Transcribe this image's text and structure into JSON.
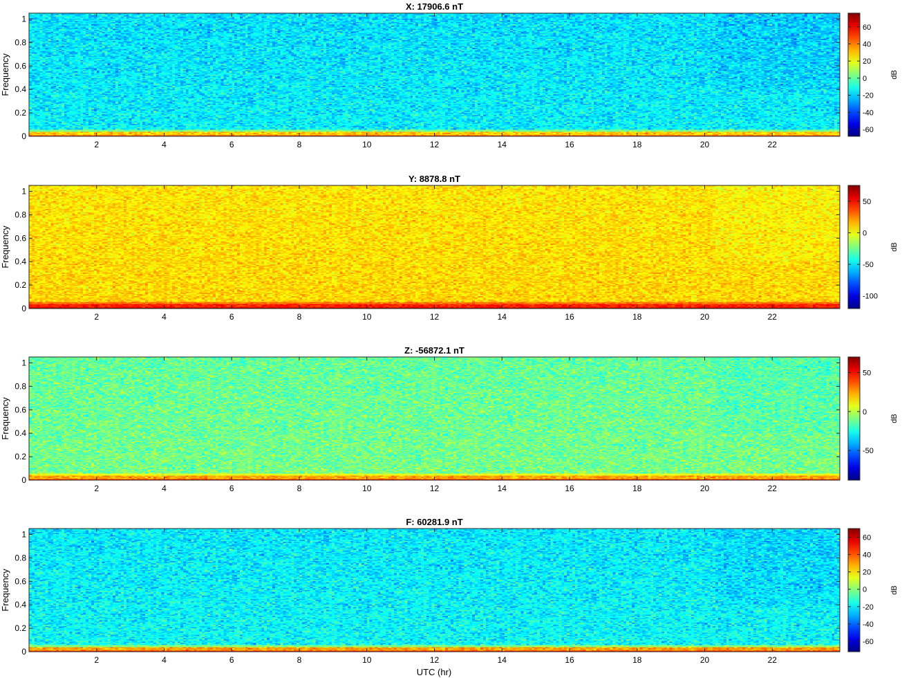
{
  "figure": {
    "xlabel": "UTC (hr)"
  },
  "chart_data": [
    {
      "type": "heatmap",
      "title": "X: 17906.6 nT",
      "ylabel": "Frequency",
      "xlim": [
        0,
        24
      ],
      "ylim": [
        0,
        1.05
      ],
      "xticks": [
        2,
        4,
        6,
        8,
        10,
        12,
        14,
        16,
        18,
        20,
        22
      ],
      "yticks": [
        0,
        0.2,
        0.4,
        0.6,
        0.8,
        1
      ],
      "colorbar": {
        "label": "dB",
        "min": -68,
        "max": 76,
        "ticks": [
          -60,
          -40,
          -20,
          0,
          20,
          40,
          60
        ]
      },
      "colormap": "jet",
      "background_level_dB": -15,
      "low_frequency_band_dB": 40
    },
    {
      "type": "heatmap",
      "title": "Y: 8878.8 nT",
      "ylabel": "Frequency",
      "xlim": [
        0,
        24
      ],
      "ylim": [
        0,
        1.05
      ],
      "xticks": [
        2,
        4,
        6,
        8,
        10,
        12,
        14,
        16,
        18,
        20,
        22
      ],
      "yticks": [
        0,
        0.2,
        0.4,
        0.6,
        0.8,
        1
      ],
      "colorbar": {
        "label": "dB",
        "min": -120,
        "max": 75,
        "ticks": [
          -100,
          -50,
          0,
          50
        ]
      },
      "colormap": "jet",
      "background_level_dB": 10,
      "low_frequency_band_dB": 55
    },
    {
      "type": "heatmap",
      "title": "Z: -56872.1 nT",
      "ylabel": "Frequency",
      "xlim": [
        0,
        24
      ],
      "ylim": [
        0,
        1.05
      ],
      "xticks": [
        2,
        4,
        6,
        8,
        10,
        12,
        14,
        16,
        18,
        20,
        22
      ],
      "yticks": [
        0,
        0.2,
        0.4,
        0.6,
        0.8,
        1
      ],
      "colorbar": {
        "label": "dB",
        "min": -88,
        "max": 70,
        "ticks": [
          -50,
          0,
          50
        ]
      },
      "colormap": "jet",
      "background_level_dB": -10,
      "low_frequency_band_dB": 35
    },
    {
      "type": "heatmap",
      "title": "F: 60281.9 nT",
      "ylabel": "Frequency",
      "xlim": [
        0,
        24
      ],
      "ylim": [
        0,
        1.05
      ],
      "xticks": [
        2,
        4,
        6,
        8,
        10,
        12,
        14,
        16,
        18,
        20,
        22
      ],
      "yticks": [
        0,
        0.2,
        0.4,
        0.6,
        0.8,
        1
      ],
      "colorbar": {
        "label": "dB",
        "min": -72,
        "max": 70,
        "ticks": [
          -60,
          -40,
          -20,
          0,
          20,
          40,
          60
        ]
      },
      "colormap": "jet",
      "background_level_dB": -18,
      "low_frequency_band_dB": 40
    }
  ]
}
